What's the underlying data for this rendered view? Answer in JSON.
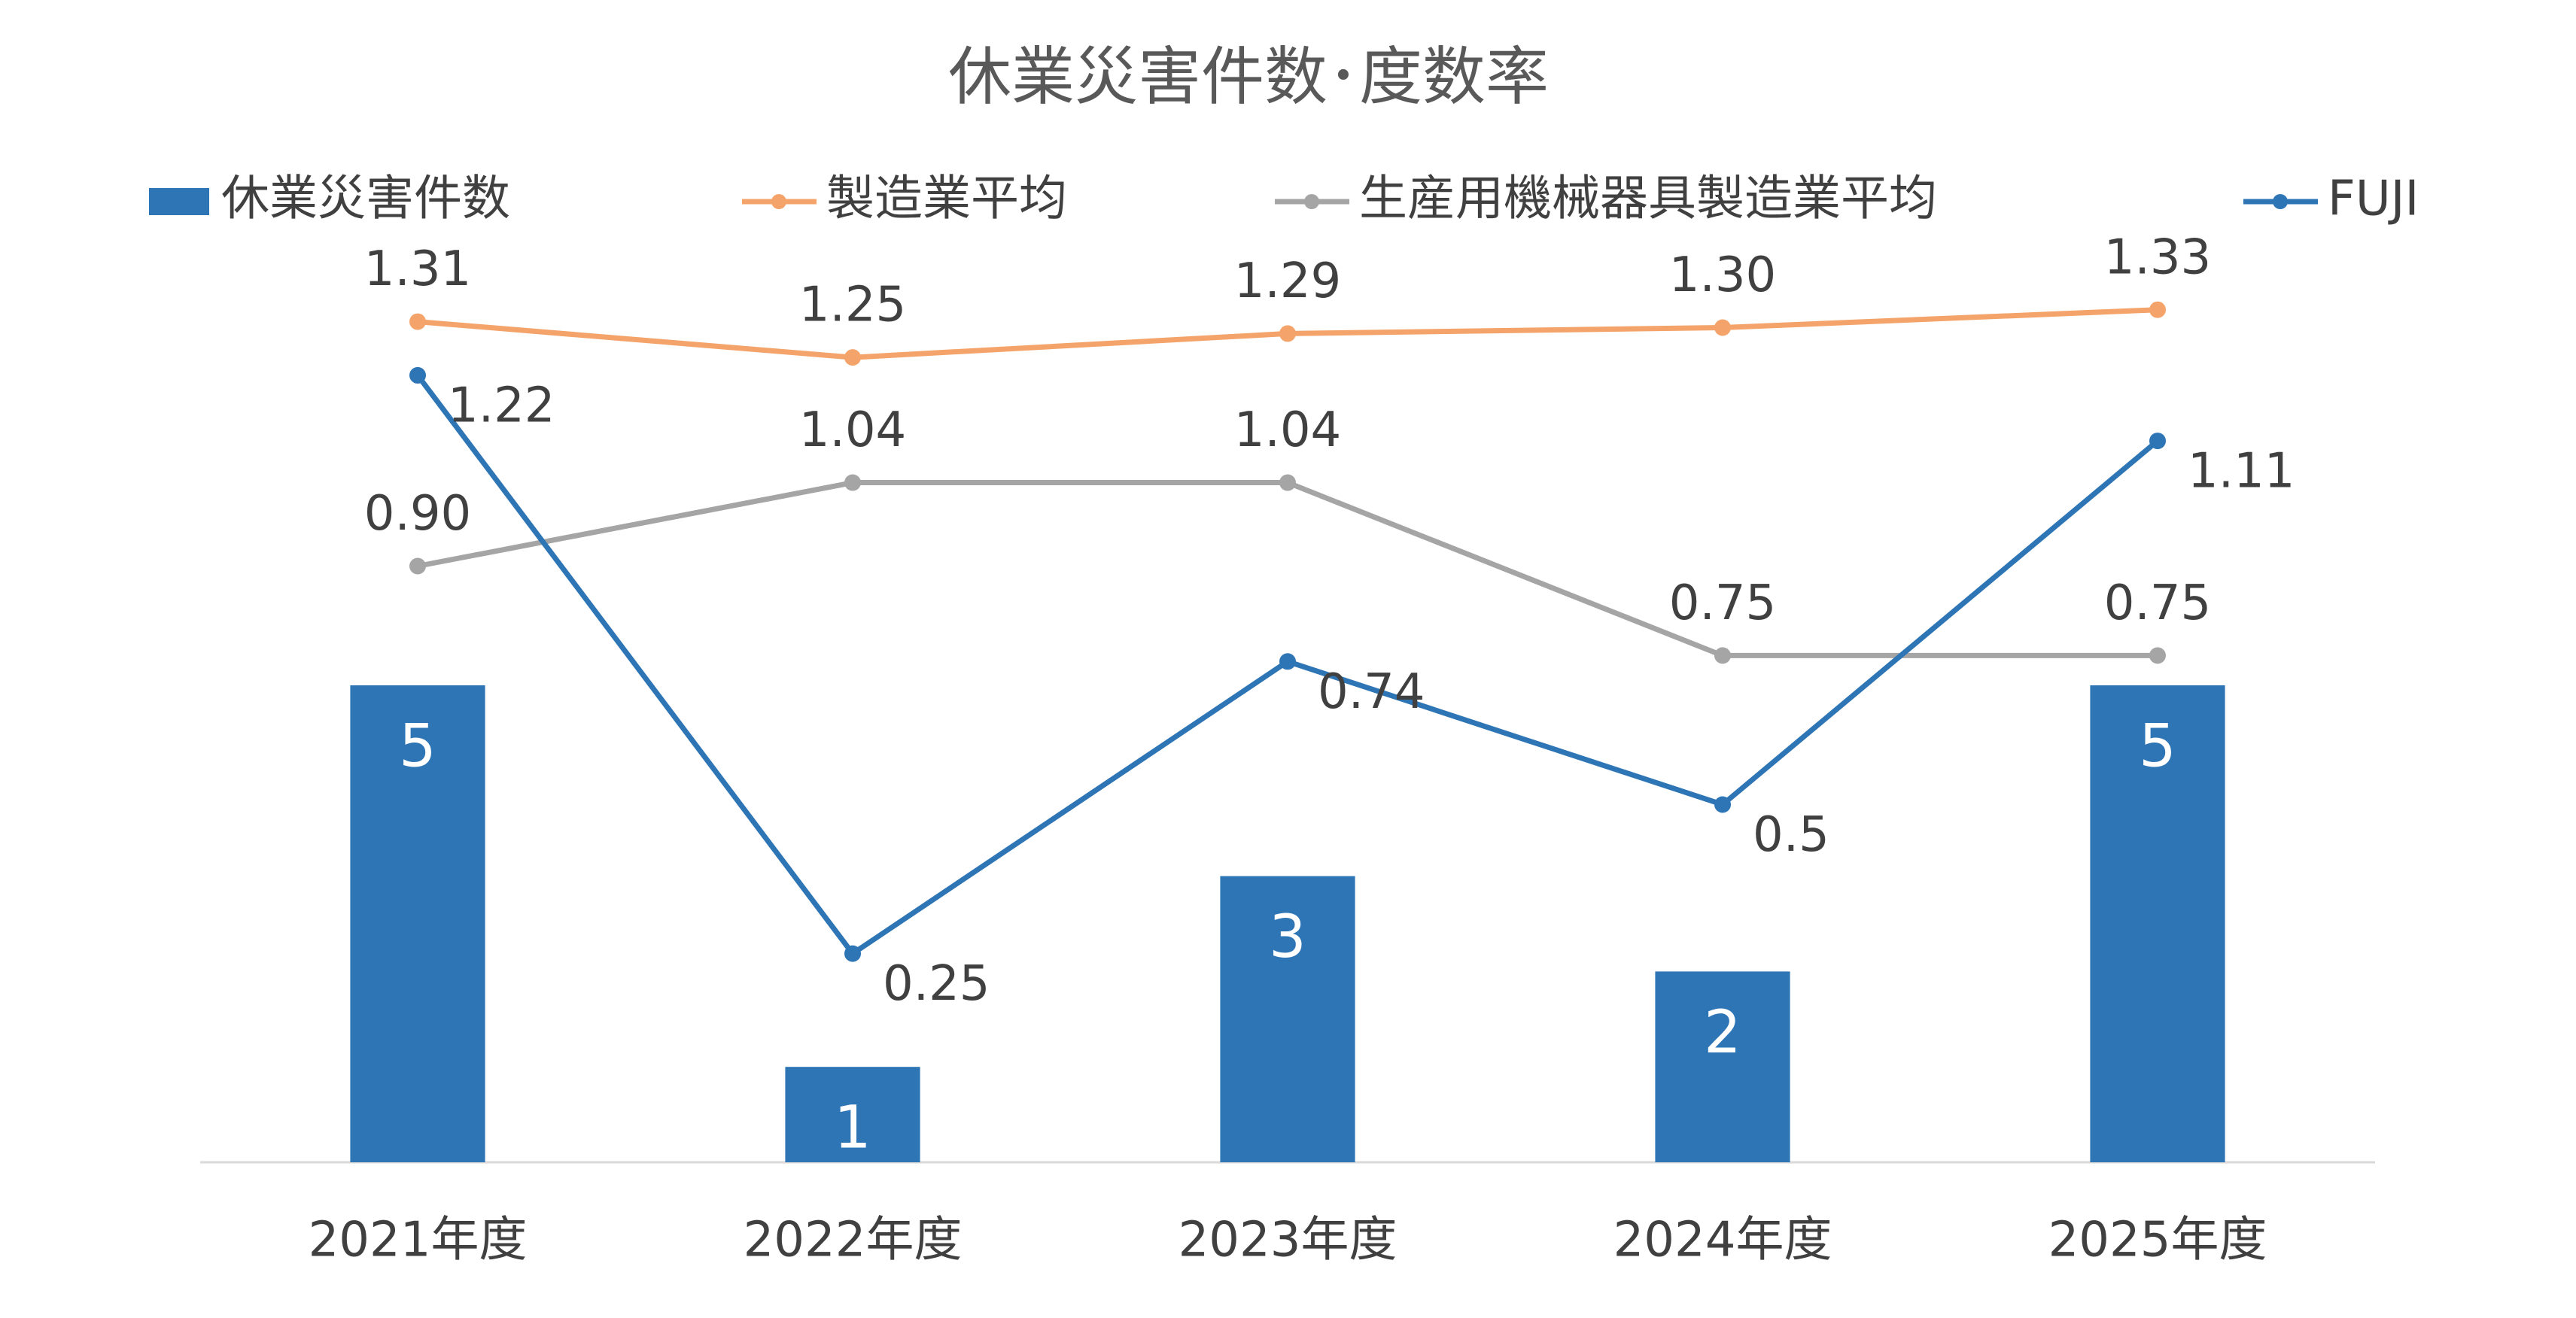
{
  "chart_data": {
    "type": "combo",
    "title": "休業災害件数･度数率",
    "categories": [
      "2021年度",
      "2022年度",
      "2023年度",
      "2024年度",
      "2025年度"
    ],
    "ylim": [
      0,
      10
    ],
    "y2lim": [
      -0.1,
      1.5
    ],
    "grid": false,
    "legend": "top",
    "series": [
      {
        "name": "休業災害件数",
        "type": "bar",
        "color": "#2e75b6",
        "values": [
          5,
          1,
          3,
          2,
          5
        ]
      },
      {
        "name": "製造業平均",
        "type": "line",
        "axis": "y2",
        "color": "#f4a46a",
        "values": [
          1.31,
          1.25,
          1.29,
          1.3,
          1.33
        ],
        "value_labels": [
          "1.31",
          "1.25",
          "1.29",
          "1.30",
          "1.33"
        ]
      },
      {
        "name": "生産用機械器具製造業平均",
        "type": "line",
        "axis": "y2",
        "color": "#a5a5a5",
        "values": [
          0.9,
          1.04,
          1.04,
          0.75,
          0.75
        ],
        "value_labels": [
          "0.90",
          "1.04",
          "1.04",
          "0.75",
          "0.75"
        ]
      },
      {
        "name": "FUJI",
        "type": "line",
        "axis": "y2",
        "color": "#2e75b6",
        "values": [
          1.22,
          0.25,
          0.74,
          0.5,
          1.11
        ]
      }
    ]
  }
}
